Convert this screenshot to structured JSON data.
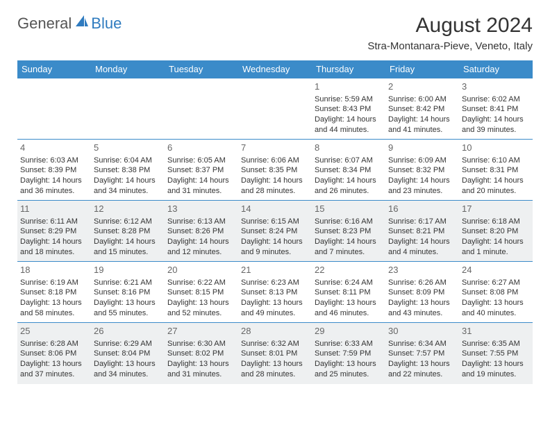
{
  "logo": {
    "general": "General",
    "blue": "Blue",
    "icon_color": "#2f7bbf"
  },
  "title": "August 2024",
  "location": "Stra-Montanara-Pieve, Veneto, Italy",
  "colors": {
    "header_bg": "#3b8bc9",
    "header_text": "#ffffff",
    "border": "#3b8bc9",
    "shade_bg": "#eef0f1",
    "text": "#333333",
    "daynum": "#666666"
  },
  "typography": {
    "title_fontsize": 30,
    "location_fontsize": 15,
    "header_fontsize": 13,
    "cell_fontsize": 11,
    "daynum_fontsize": 13
  },
  "day_headers": [
    "Sunday",
    "Monday",
    "Tuesday",
    "Wednesday",
    "Thursday",
    "Friday",
    "Saturday"
  ],
  "weeks": [
    {
      "shaded": false,
      "cells": [
        null,
        null,
        null,
        null,
        {
          "day": "1",
          "sunrise": "Sunrise: 5:59 AM",
          "sunset": "Sunset: 8:43 PM",
          "daylight1": "Daylight: 14 hours",
          "daylight2": "and 44 minutes."
        },
        {
          "day": "2",
          "sunrise": "Sunrise: 6:00 AM",
          "sunset": "Sunset: 8:42 PM",
          "daylight1": "Daylight: 14 hours",
          "daylight2": "and 41 minutes."
        },
        {
          "day": "3",
          "sunrise": "Sunrise: 6:02 AM",
          "sunset": "Sunset: 8:41 PM",
          "daylight1": "Daylight: 14 hours",
          "daylight2": "and 39 minutes."
        }
      ]
    },
    {
      "shaded": false,
      "cells": [
        {
          "day": "4",
          "sunrise": "Sunrise: 6:03 AM",
          "sunset": "Sunset: 8:39 PM",
          "daylight1": "Daylight: 14 hours",
          "daylight2": "and 36 minutes."
        },
        {
          "day": "5",
          "sunrise": "Sunrise: 6:04 AM",
          "sunset": "Sunset: 8:38 PM",
          "daylight1": "Daylight: 14 hours",
          "daylight2": "and 34 minutes."
        },
        {
          "day": "6",
          "sunrise": "Sunrise: 6:05 AM",
          "sunset": "Sunset: 8:37 PM",
          "daylight1": "Daylight: 14 hours",
          "daylight2": "and 31 minutes."
        },
        {
          "day": "7",
          "sunrise": "Sunrise: 6:06 AM",
          "sunset": "Sunset: 8:35 PM",
          "daylight1": "Daylight: 14 hours",
          "daylight2": "and 28 minutes."
        },
        {
          "day": "8",
          "sunrise": "Sunrise: 6:07 AM",
          "sunset": "Sunset: 8:34 PM",
          "daylight1": "Daylight: 14 hours",
          "daylight2": "and 26 minutes."
        },
        {
          "day": "9",
          "sunrise": "Sunrise: 6:09 AM",
          "sunset": "Sunset: 8:32 PM",
          "daylight1": "Daylight: 14 hours",
          "daylight2": "and 23 minutes."
        },
        {
          "day": "10",
          "sunrise": "Sunrise: 6:10 AM",
          "sunset": "Sunset: 8:31 PM",
          "daylight1": "Daylight: 14 hours",
          "daylight2": "and 20 minutes."
        }
      ]
    },
    {
      "shaded": true,
      "cells": [
        {
          "day": "11",
          "sunrise": "Sunrise: 6:11 AM",
          "sunset": "Sunset: 8:29 PM",
          "daylight1": "Daylight: 14 hours",
          "daylight2": "and 18 minutes."
        },
        {
          "day": "12",
          "sunrise": "Sunrise: 6:12 AM",
          "sunset": "Sunset: 8:28 PM",
          "daylight1": "Daylight: 14 hours",
          "daylight2": "and 15 minutes."
        },
        {
          "day": "13",
          "sunrise": "Sunrise: 6:13 AM",
          "sunset": "Sunset: 8:26 PM",
          "daylight1": "Daylight: 14 hours",
          "daylight2": "and 12 minutes."
        },
        {
          "day": "14",
          "sunrise": "Sunrise: 6:15 AM",
          "sunset": "Sunset: 8:24 PM",
          "daylight1": "Daylight: 14 hours",
          "daylight2": "and 9 minutes."
        },
        {
          "day": "15",
          "sunrise": "Sunrise: 6:16 AM",
          "sunset": "Sunset: 8:23 PM",
          "daylight1": "Daylight: 14 hours",
          "daylight2": "and 7 minutes."
        },
        {
          "day": "16",
          "sunrise": "Sunrise: 6:17 AM",
          "sunset": "Sunset: 8:21 PM",
          "daylight1": "Daylight: 14 hours",
          "daylight2": "and 4 minutes."
        },
        {
          "day": "17",
          "sunrise": "Sunrise: 6:18 AM",
          "sunset": "Sunset: 8:20 PM",
          "daylight1": "Daylight: 14 hours",
          "daylight2": "and 1 minute."
        }
      ]
    },
    {
      "shaded": false,
      "cells": [
        {
          "day": "18",
          "sunrise": "Sunrise: 6:19 AM",
          "sunset": "Sunset: 8:18 PM",
          "daylight1": "Daylight: 13 hours",
          "daylight2": "and 58 minutes."
        },
        {
          "day": "19",
          "sunrise": "Sunrise: 6:21 AM",
          "sunset": "Sunset: 8:16 PM",
          "daylight1": "Daylight: 13 hours",
          "daylight2": "and 55 minutes."
        },
        {
          "day": "20",
          "sunrise": "Sunrise: 6:22 AM",
          "sunset": "Sunset: 8:15 PM",
          "daylight1": "Daylight: 13 hours",
          "daylight2": "and 52 minutes."
        },
        {
          "day": "21",
          "sunrise": "Sunrise: 6:23 AM",
          "sunset": "Sunset: 8:13 PM",
          "daylight1": "Daylight: 13 hours",
          "daylight2": "and 49 minutes."
        },
        {
          "day": "22",
          "sunrise": "Sunrise: 6:24 AM",
          "sunset": "Sunset: 8:11 PM",
          "daylight1": "Daylight: 13 hours",
          "daylight2": "and 46 minutes."
        },
        {
          "day": "23",
          "sunrise": "Sunrise: 6:26 AM",
          "sunset": "Sunset: 8:09 PM",
          "daylight1": "Daylight: 13 hours",
          "daylight2": "and 43 minutes."
        },
        {
          "day": "24",
          "sunrise": "Sunrise: 6:27 AM",
          "sunset": "Sunset: 8:08 PM",
          "daylight1": "Daylight: 13 hours",
          "daylight2": "and 40 minutes."
        }
      ]
    },
    {
      "shaded": true,
      "cells": [
        {
          "day": "25",
          "sunrise": "Sunrise: 6:28 AM",
          "sunset": "Sunset: 8:06 PM",
          "daylight1": "Daylight: 13 hours",
          "daylight2": "and 37 minutes."
        },
        {
          "day": "26",
          "sunrise": "Sunrise: 6:29 AM",
          "sunset": "Sunset: 8:04 PM",
          "daylight1": "Daylight: 13 hours",
          "daylight2": "and 34 minutes."
        },
        {
          "day": "27",
          "sunrise": "Sunrise: 6:30 AM",
          "sunset": "Sunset: 8:02 PM",
          "daylight1": "Daylight: 13 hours",
          "daylight2": "and 31 minutes."
        },
        {
          "day": "28",
          "sunrise": "Sunrise: 6:32 AM",
          "sunset": "Sunset: 8:01 PM",
          "daylight1": "Daylight: 13 hours",
          "daylight2": "and 28 minutes."
        },
        {
          "day": "29",
          "sunrise": "Sunrise: 6:33 AM",
          "sunset": "Sunset: 7:59 PM",
          "daylight1": "Daylight: 13 hours",
          "daylight2": "and 25 minutes."
        },
        {
          "day": "30",
          "sunrise": "Sunrise: 6:34 AM",
          "sunset": "Sunset: 7:57 PM",
          "daylight1": "Daylight: 13 hours",
          "daylight2": "and 22 minutes."
        },
        {
          "day": "31",
          "sunrise": "Sunrise: 6:35 AM",
          "sunset": "Sunset: 7:55 PM",
          "daylight1": "Daylight: 13 hours",
          "daylight2": "and 19 minutes."
        }
      ]
    }
  ]
}
